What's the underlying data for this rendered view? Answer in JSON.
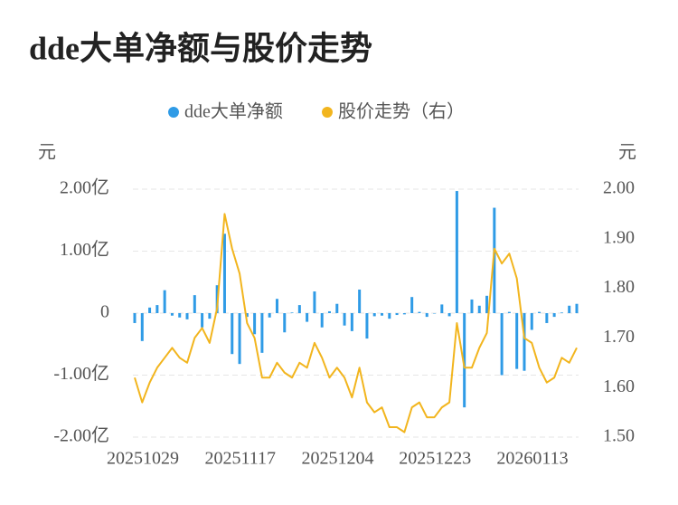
{
  "chart_data": {
    "type": "bar_line",
    "title": "dde大单净额与股价走势",
    "yaxis_label": "元",
    "y2axis_label": "元",
    "categories": [
      "20251029",
      null,
      null,
      null,
      null,
      null,
      null,
      null,
      null,
      null,
      null,
      null,
      null,
      "20251117",
      null,
      null,
      null,
      null,
      null,
      null,
      null,
      null,
      null,
      null,
      null,
      null,
      "20251204",
      null,
      null,
      null,
      null,
      null,
      null,
      null,
      null,
      null,
      null,
      null,
      null,
      "20251223",
      null,
      null,
      null,
      null,
      null,
      null,
      null,
      null,
      null,
      null,
      null,
      null,
      "20260113",
      null,
      null,
      null,
      null,
      null,
      null,
      null
    ],
    "series": [
      {
        "name": "dde大单净额",
        "type": "bar",
        "color": "#2f9be6",
        "axis": "y",
        "values": [
          -0.16,
          -0.45,
          0.09,
          0.13,
          0.37,
          -0.04,
          -0.07,
          -0.1,
          0.29,
          -0.23,
          -0.09,
          0.45,
          1.28,
          -0.66,
          -0.82,
          -0.06,
          -0.34,
          -0.64,
          -0.07,
          0.23,
          -0.31,
          0.01,
          0.13,
          -0.14,
          0.35,
          -0.23,
          0.03,
          0.15,
          -0.2,
          -0.29,
          0.38,
          -0.41,
          -0.05,
          -0.04,
          -0.09,
          -0.03,
          -0.02,
          0.26,
          0.02,
          -0.06,
          0.0,
          0.14,
          -0.05,
          1.97,
          -1.52,
          0.22,
          0.12,
          0.28,
          1.7,
          -1.0,
          0.02,
          -0.9,
          -0.93,
          -0.27,
          0.02,
          -0.16,
          -0.06,
          0.01,
          0.12,
          0.15
        ]
      },
      {
        "name": "股价走势（右）",
        "type": "line",
        "color": "#f2b51e",
        "axis": "y2",
        "values": [
          1.62,
          1.57,
          1.61,
          1.64,
          1.66,
          1.68,
          1.66,
          1.65,
          1.7,
          1.72,
          1.69,
          1.76,
          1.95,
          1.88,
          1.83,
          1.73,
          1.7,
          1.62,
          1.62,
          1.65,
          1.63,
          1.62,
          1.65,
          1.64,
          1.69,
          1.66,
          1.62,
          1.64,
          1.62,
          1.58,
          1.64,
          1.57,
          1.55,
          1.56,
          1.52,
          1.52,
          1.51,
          1.56,
          1.57,
          1.54,
          1.54,
          1.56,
          1.57,
          1.73,
          1.64,
          1.64,
          1.68,
          1.71,
          1.88,
          1.85,
          1.87,
          1.82,
          1.7,
          1.69,
          1.64,
          1.61,
          1.62,
          1.66,
          1.65,
          1.68
        ]
      }
    ],
    "ylim": [
      -2,
      2
    ],
    "yticks": [
      {
        "value": 2,
        "label": "2.00亿"
      },
      {
        "value": 1,
        "label": "1.00亿"
      },
      0,
      {
        "value": -1,
        "label": "-1.00亿"
      },
      {
        "value": -2,
        "label": "-2.00亿"
      }
    ],
    "y2lim": [
      1.5,
      2.0
    ],
    "y2ticks": [
      {
        "value": 2.0,
        "label": "2.00"
      },
      {
        "value": 1.9,
        "label": "1.90"
      },
      {
        "value": 1.8,
        "label": "1.80"
      },
      {
        "value": 1.7,
        "label": "1.70"
      },
      {
        "value": 1.6,
        "label": "1.60"
      },
      {
        "value": 1.5,
        "label": "1.50"
      }
    ],
    "grid": true,
    "legend": "top"
  }
}
